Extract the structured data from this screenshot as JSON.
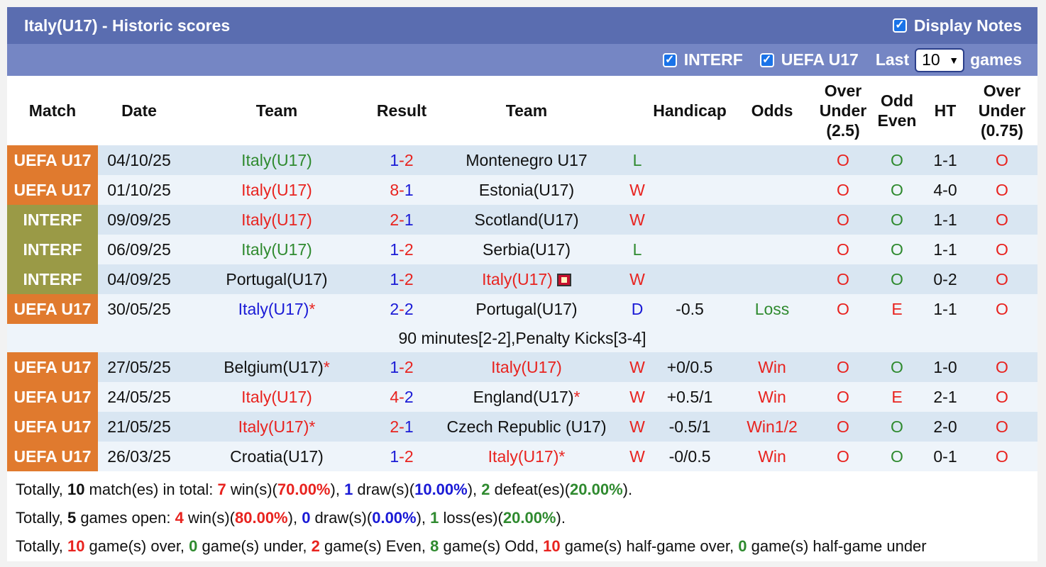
{
  "header": {
    "title": "Italy(U17) - Historic scores",
    "display_notes_label": "Display Notes",
    "interf_label": "INTERF",
    "uefa_label": "UEFA U17",
    "last_label": "Last",
    "games_value": "10",
    "games_label": "games"
  },
  "columns": [
    "Match",
    "Date",
    "Team",
    "Result",
    "Team",
    "",
    "Handicap",
    "Odds",
    "Over\nUnder\n(2.5)",
    "Odd\nEven",
    "HT",
    "Over\nUnder\n(0.75)"
  ],
  "rows": [
    {
      "match": "UEFA U17",
      "type": "uefa",
      "date": "04/10/25",
      "home": "Italy(U17)",
      "home_color": "green",
      "home_star": "",
      "h": "1",
      "a": "2",
      "h_color": "blue",
      "a_color": "red",
      "away": "Montenegro U17",
      "away_color": "black",
      "away_star": "",
      "wl": "L",
      "wl_color": "green",
      "handicap": "",
      "odds": "",
      "odds_color": "",
      "ou": "O",
      "oe": "O",
      "oe_color": "green",
      "ht": "1-1",
      "ou2": "O"
    },
    {
      "match": "UEFA U17",
      "type": "uefa",
      "date": "01/10/25",
      "home": "Italy(U17)",
      "home_color": "red",
      "home_star": "",
      "h": "8",
      "a": "1",
      "h_color": "red",
      "a_color": "blue",
      "away": "Estonia(U17)",
      "away_color": "black",
      "away_star": "",
      "wl": "W",
      "wl_color": "red",
      "handicap": "",
      "odds": "",
      "odds_color": "",
      "ou": "O",
      "oe": "O",
      "oe_color": "green",
      "ht": "4-0",
      "ou2": "O"
    },
    {
      "match": "INTERF",
      "type": "interf",
      "date": "09/09/25",
      "home": "Italy(U17)",
      "home_color": "red",
      "home_star": "",
      "h": "2",
      "a": "1",
      "h_color": "red",
      "a_color": "blue",
      "away": "Scotland(U17)",
      "away_color": "black",
      "away_star": "",
      "wl": "W",
      "wl_color": "red",
      "handicap": "",
      "odds": "",
      "odds_color": "",
      "ou": "O",
      "oe": "O",
      "oe_color": "green",
      "ht": "1-1",
      "ou2": "O"
    },
    {
      "match": "INTERF",
      "type": "interf",
      "date": "06/09/25",
      "home": "Italy(U17)",
      "home_color": "green",
      "home_star": "",
      "h": "1",
      "a": "2",
      "h_color": "blue",
      "a_color": "red",
      "away": "Serbia(U17)",
      "away_color": "black",
      "away_star": "",
      "wl": "L",
      "wl_color": "green",
      "handicap": "",
      "odds": "",
      "odds_color": "",
      "ou": "O",
      "oe": "O",
      "oe_color": "green",
      "ht": "1-1",
      "ou2": "O"
    },
    {
      "match": "INTERF",
      "type": "interf",
      "date": "04/09/25",
      "home": "Portugal(U17)",
      "home_color": "black",
      "home_star": "",
      "h": "1",
      "a": "2",
      "h_color": "blue",
      "a_color": "red",
      "away": "Italy(U17)",
      "away_color": "red",
      "away_star": "",
      "away_flag": true,
      "wl": "W",
      "wl_color": "red",
      "handicap": "",
      "odds": "",
      "odds_color": "",
      "ou": "O",
      "oe": "O",
      "oe_color": "green",
      "ht": "0-2",
      "ou2": "O"
    },
    {
      "match": "UEFA U17",
      "type": "uefa",
      "date": "30/05/25",
      "home": "Italy(U17)",
      "home_color": "blue",
      "home_star": "*",
      "h": "2",
      "a": "2",
      "h_color": "blue",
      "a_color": "blue",
      "away": "Portugal(U17)",
      "away_color": "black",
      "away_star": "",
      "wl": "D",
      "wl_color": "blue",
      "handicap": "-0.5",
      "odds": "Loss",
      "odds_color": "green",
      "ou": "O",
      "oe": "E",
      "oe_color": "red",
      "ht": "1-1",
      "ou2": "O",
      "note": "90 minutes[2-2],Penalty Kicks[3-4]"
    },
    {
      "match": "UEFA U17",
      "type": "uefa",
      "date": "27/05/25",
      "home": "Belgium(U17)",
      "home_color": "black",
      "home_star": "*",
      "h": "1",
      "a": "2",
      "h_color": "blue",
      "a_color": "red",
      "away": "Italy(U17)",
      "away_color": "red",
      "away_star": "",
      "wl": "W",
      "wl_color": "red",
      "handicap": "+0/0.5",
      "odds": "Win",
      "odds_color": "red",
      "ou": "O",
      "oe": "O",
      "oe_color": "green",
      "ht": "1-0",
      "ou2": "O"
    },
    {
      "match": "UEFA U17",
      "type": "uefa",
      "date": "24/05/25",
      "home": "Italy(U17)",
      "home_color": "red",
      "home_star": "",
      "h": "4",
      "a": "2",
      "h_color": "red",
      "a_color": "blue",
      "away": "England(U17)",
      "away_color": "black",
      "away_star": "*",
      "wl": "W",
      "wl_color": "red",
      "handicap": "+0.5/1",
      "odds": "Win",
      "odds_color": "red",
      "ou": "O",
      "oe": "E",
      "oe_color": "red",
      "ht": "2-1",
      "ou2": "O"
    },
    {
      "match": "UEFA U17",
      "type": "uefa",
      "date": "21/05/25",
      "home": "Italy(U17)",
      "home_color": "red",
      "home_star": "*",
      "h": "2",
      "a": "1",
      "h_color": "red",
      "a_color": "blue",
      "away": "Czech Republic (U17)",
      "away_color": "black",
      "away_star": "",
      "wl": "W",
      "wl_color": "red",
      "handicap": "-0.5/1",
      "odds": "Win1/2",
      "odds_color": "red",
      "ou": "O",
      "oe": "O",
      "oe_color": "green",
      "ht": "2-0",
      "ou2": "O"
    },
    {
      "match": "UEFA U17",
      "type": "uefa",
      "date": "26/03/25",
      "home": "Croatia(U17)",
      "home_color": "black",
      "home_star": "",
      "h": "1",
      "a": "2",
      "h_color": "blue",
      "a_color": "red",
      "away": "Italy(U17)",
      "away_color": "red",
      "away_star": "*",
      "wl": "W",
      "wl_color": "red",
      "handicap": "-0/0.5",
      "odds": "Win",
      "odds_color": "red",
      "ou": "O",
      "oe": "O",
      "oe_color": "green",
      "ht": "0-1",
      "ou2": "O"
    }
  ],
  "totals": {
    "line1": [
      {
        "t": "Totally, ",
        "c": ""
      },
      {
        "t": "10",
        "c": "b"
      },
      {
        "t": " match(es) in total: ",
        "c": ""
      },
      {
        "t": "7",
        "c": "red b"
      },
      {
        "t": " win(s)(",
        "c": ""
      },
      {
        "t": "70.00%",
        "c": "red b"
      },
      {
        "t": "), ",
        "c": ""
      },
      {
        "t": "1",
        "c": "blue b"
      },
      {
        "t": " draw(s)(",
        "c": ""
      },
      {
        "t": "10.00%",
        "c": "blue b"
      },
      {
        "t": "), ",
        "c": ""
      },
      {
        "t": "2",
        "c": "green b"
      },
      {
        "t": " defeat(es)(",
        "c": ""
      },
      {
        "t": "20.00%",
        "c": "green b"
      },
      {
        "t": ").",
        "c": ""
      }
    ],
    "line2": [
      {
        "t": "Totally, ",
        "c": ""
      },
      {
        "t": "5",
        "c": "b"
      },
      {
        "t": " games open: ",
        "c": ""
      },
      {
        "t": "4",
        "c": "red b"
      },
      {
        "t": " win(s)(",
        "c": ""
      },
      {
        "t": "80.00%",
        "c": "red b"
      },
      {
        "t": "), ",
        "c": ""
      },
      {
        "t": "0",
        "c": "blue b"
      },
      {
        "t": " draw(s)(",
        "c": ""
      },
      {
        "t": "0.00%",
        "c": "blue b"
      },
      {
        "t": "), ",
        "c": ""
      },
      {
        "t": "1",
        "c": "green b"
      },
      {
        "t": " loss(es)(",
        "c": ""
      },
      {
        "t": "20.00%",
        "c": "green b"
      },
      {
        "t": ").",
        "c": ""
      }
    ],
    "line3": [
      {
        "t": "Totally, ",
        "c": ""
      },
      {
        "t": "10",
        "c": "red b"
      },
      {
        "t": " game(s) over, ",
        "c": ""
      },
      {
        "t": "0",
        "c": "green b"
      },
      {
        "t": " game(s) under, ",
        "c": ""
      },
      {
        "t": "2",
        "c": "red b"
      },
      {
        "t": " game(s) Even, ",
        "c": ""
      },
      {
        "t": "8",
        "c": "green b"
      },
      {
        "t": " game(s) Odd, ",
        "c": ""
      },
      {
        "t": "10",
        "c": "red b"
      },
      {
        "t": " game(s) half-game over, ",
        "c": ""
      },
      {
        "t": "0",
        "c": "green b"
      },
      {
        "t": " game(s) half-game under",
        "c": ""
      }
    ]
  },
  "colors": {
    "uefa": "#e07a2e",
    "interf": "#9a9a46",
    "header": "#5a6db0",
    "filter": "#7586c4"
  }
}
